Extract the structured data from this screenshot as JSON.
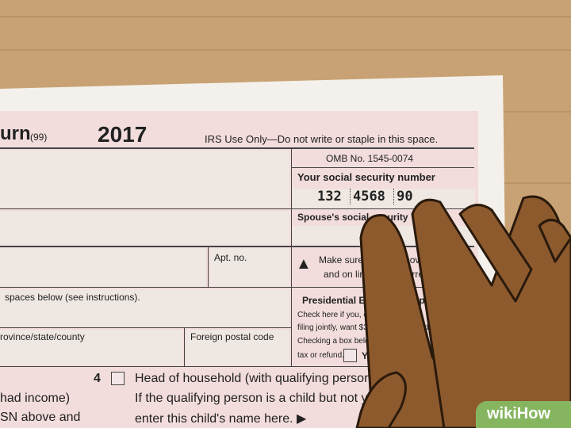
{
  "form": {
    "title_fragment": "urn",
    "code": "(99)",
    "year": "2017",
    "irs_use": "IRS Use Only—Do not write or staple in this space.",
    "omb": "OMB No. 1545-0074",
    "ssn_label": "Your social security number",
    "ssn": [
      "132",
      "4568",
      "90"
    ],
    "spouse_ssn_label": "Spouse's social security",
    "apt_label": "Apt. no.",
    "make_sure": "Make sure SSN(s) above",
    "make_sure2": "and on line 6c are correct.",
    "spaces_below": "spaces below (see instructions).",
    "presidential": "Presidential Election Campaign",
    "check_here": "Check here if you, or your spouse if",
    "filing_jointly": "filing jointly, want $3 to go to this fund.",
    "checking_box": "Checking a box below will not change your",
    "tax_refund": "tax or refund.",
    "you_label": "You",
    "province": "rovince/state/county",
    "postal": "Foreign postal code",
    "line4_num": "4",
    "line4": "Head of household (with qualifying person). (See instructions.)",
    "line4b": "If the qualifying person is a child but not your dependent,",
    "line4c": "enter this child's name here. ▶",
    "left1": "had income)",
    "left2": "SN above and"
  },
  "watermark": "wikiHow",
  "colors": {
    "wood": "#c8a274",
    "form_pink": "#f2dcdc",
    "skin": "#8d5a2e",
    "watermark": "#86b560"
  }
}
